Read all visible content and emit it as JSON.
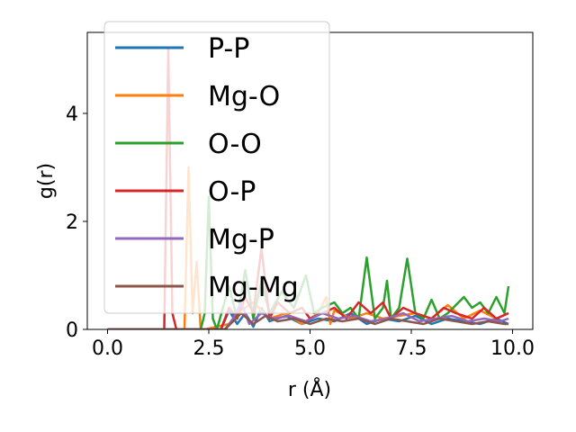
{
  "chart_data": {
    "type": "line",
    "xlabel": "r (Å)",
    "ylabel": "g(r)",
    "xlim": [
      -0.5,
      10.5
    ],
    "ylim": [
      0,
      5.5
    ],
    "xticks": [
      0.0,
      2.5,
      5.0,
      7.5,
      10.0
    ],
    "xtick_labels": [
      "0.0",
      "2.5",
      "5.0",
      "7.5",
      "10.0"
    ],
    "yticks": [
      0,
      2,
      4
    ],
    "ytick_labels": [
      "0",
      "2",
      "4"
    ],
    "grid": false,
    "legend_position": "upper-left",
    "series": [
      {
        "name": "P-P",
        "color": "#1f77b4",
        "x": [
          0,
          2.8,
          3.0,
          3.2,
          3.4,
          3.6,
          3.8,
          4.0,
          4.4,
          4.8,
          5.2,
          5.6,
          6.0,
          6.4,
          6.8,
          7.2,
          7.6,
          8.0,
          8.4,
          8.8,
          9.2,
          9.6,
          9.9
        ],
        "y": [
          0,
          0,
          0.35,
          0.1,
          0.3,
          0.05,
          0.4,
          0.15,
          0.25,
          0.1,
          0.2,
          0.15,
          0.3,
          0.1,
          0.2,
          0.15,
          0.25,
          0.1,
          0.2,
          0.15,
          0.1,
          0.2,
          0.1
        ]
      },
      {
        "name": "Mg-O",
        "color": "#ff7f0e",
        "x": [
          0,
          1.8,
          1.9,
          2.0,
          2.1,
          2.2,
          2.3,
          2.4,
          3.0,
          3.2,
          3.6,
          4.0,
          4.4,
          4.8,
          5.2,
          5.4,
          5.5,
          5.6,
          6.0,
          6.4,
          6.8,
          7.2,
          7.6,
          8.0,
          8.4,
          8.8,
          9.2,
          9.6,
          9.9
        ],
        "y": [
          0,
          0,
          0,
          3.0,
          0.3,
          1.25,
          0,
          0,
          0.1,
          0.3,
          0.5,
          0.2,
          0.3,
          0.1,
          0.3,
          0.6,
          0.1,
          0.35,
          0.2,
          0.3,
          0.2,
          0.25,
          0.3,
          0.2,
          0.45,
          0.2,
          0.35,
          0.2,
          0.3
        ]
      },
      {
        "name": "O-O",
        "color": "#2ca02c",
        "x": [
          0,
          2.3,
          2.4,
          2.5,
          2.6,
          2.7,
          3.0,
          3.2,
          3.4,
          3.6,
          3.8,
          4.0,
          4.3,
          4.6,
          4.9,
          5.1,
          5.3,
          5.6,
          5.8,
          6.0,
          6.2,
          6.4,
          6.6,
          6.8,
          6.9,
          7.0,
          7.2,
          7.4,
          7.6,
          7.8,
          8.0,
          8.2,
          8.4,
          8.6,
          8.8,
          9.0,
          9.2,
          9.4,
          9.6,
          9.8,
          9.9
        ],
        "y": [
          0,
          0,
          0.3,
          2.45,
          0.2,
          0,
          0.8,
          0.2,
          1.1,
          0.2,
          0.9,
          0.3,
          0.7,
          0.4,
          1.0,
          0.3,
          0.4,
          0.5,
          0.3,
          0.4,
          0.2,
          1.33,
          0.2,
          0.4,
          0.9,
          0.2,
          0.4,
          1.31,
          0.3,
          0.2,
          0.55,
          0.2,
          0.3,
          0.45,
          0.6,
          0.4,
          0.5,
          0.3,
          0.6,
          0.3,
          0.8
        ]
      },
      {
        "name": "O-P",
        "color": "#d62728",
        "x": [
          0,
          1.4,
          1.5,
          1.6,
          1.7,
          2.8,
          3.0,
          3.2,
          3.4,
          3.6,
          3.8,
          4.0,
          4.2,
          4.5,
          4.8,
          5.0,
          5.3,
          5.6,
          5.9,
          6.2,
          6.5,
          6.8,
          7.0,
          7.3,
          7.6,
          8.0,
          8.3,
          8.6,
          9.0,
          9.3,
          9.6,
          9.9
        ],
        "y": [
          0,
          0,
          5.2,
          0.3,
          0,
          0,
          0.4,
          0.2,
          0.6,
          0.3,
          1.5,
          0.2,
          0.5,
          0.3,
          0.4,
          0.2,
          0.3,
          0.4,
          0.2,
          0.5,
          0.3,
          0.5,
          0.2,
          0.4,
          0.3,
          0.2,
          0.4,
          0.3,
          0.2,
          0.4,
          0.2,
          0.3
        ]
      },
      {
        "name": "Mg-P",
        "color": "#9467bd",
        "x": [
          0,
          2.9,
          3.1,
          3.3,
          3.5,
          3.8,
          4.1,
          4.5,
          4.9,
          5.3,
          5.7,
          6.1,
          6.5,
          6.9,
          7.3,
          7.7,
          8.1,
          8.5,
          8.9,
          9.3,
          9.7,
          9.9
        ],
        "y": [
          0,
          0,
          0.2,
          0.5,
          0.1,
          0.3,
          0.2,
          0.25,
          0.15,
          0.3,
          0.2,
          0.25,
          0.15,
          0.2,
          0.3,
          0.15,
          0.2,
          0.25,
          0.15,
          0.2,
          0.15,
          0.2
        ]
      },
      {
        "name": "Mg-Mg",
        "color": "#8c564b",
        "x": [
          0,
          2.9,
          3.1,
          3.3,
          3.6,
          3.9,
          4.2,
          4.6,
          5.0,
          5.4,
          5.8,
          6.2,
          6.6,
          7.0,
          7.4,
          7.8,
          8.2,
          8.6,
          9.0,
          9.4,
          9.8,
          9.9
        ],
        "y": [
          0,
          0,
          0.15,
          0.3,
          0.1,
          0.25,
          0.15,
          0.2,
          0.1,
          0.2,
          0.15,
          0.2,
          0.1,
          0.2,
          0.15,
          0.1,
          0.2,
          0.15,
          0.1,
          0.15,
          0.1,
          0.1
        ]
      }
    ]
  }
}
